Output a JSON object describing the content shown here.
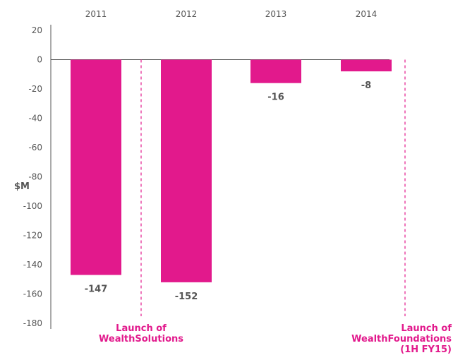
{
  "chart_data": {
    "type": "bar",
    "categories": [
      "2011",
      "2012",
      "2013",
      "2014"
    ],
    "values": [
      -147,
      -152,
      -16,
      -8
    ],
    "data_labels": [
      "-147",
      "-152",
      "-16",
      "-8"
    ],
    "ylabel": "$M",
    "ylim": [
      -180,
      20
    ],
    "yticks": [
      "20",
      "0",
      "-20",
      "-40",
      "-60",
      "-80",
      "-100",
      "-120",
      "-140",
      "-160",
      "-180"
    ],
    "ytick_values": [
      20,
      0,
      -20,
      -40,
      -60,
      -80,
      -100,
      -120,
      -140,
      -160,
      -180
    ],
    "x_axis_position": "top",
    "grid": false,
    "bar_color": "#e2198c",
    "annotations": [
      {
        "lines": [
          "Launch of",
          "WealthSolutions"
        ],
        "between": [
          "2011",
          "2012"
        ]
      },
      {
        "lines": [
          "Launch of",
          "WealthFoundations",
          "(1H FY15)"
        ],
        "after": "2014"
      }
    ],
    "annotation_color": "#e2198c"
  }
}
